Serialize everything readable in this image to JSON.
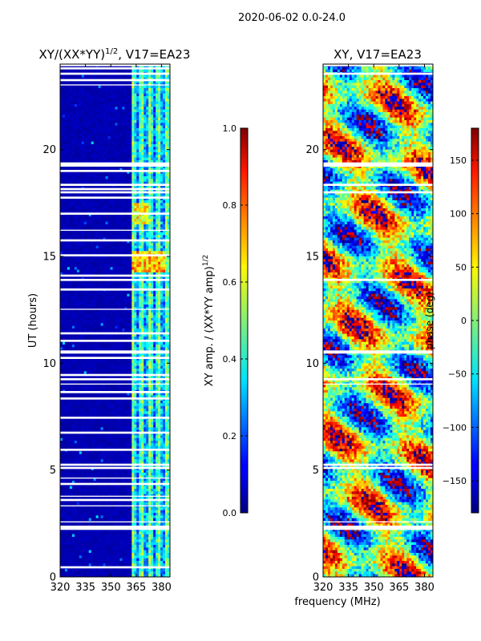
{
  "suptitle": "2020-06-02 0.0-24.0",
  "shared_xlabel": "frequency (MHz)",
  "chart_data": [
    {
      "type": "heatmap",
      "id": "amp",
      "title_main": "XY/(XX*YY)",
      "title_exp": "1/2",
      "title_rest": ", V17=EA23",
      "ylabel": "UT (hours)",
      "xlim": [
        320,
        385
      ],
      "ylim": [
        0,
        24
      ],
      "xticks": [
        320,
        335,
        350,
        365,
        380
      ],
      "yticks": [
        0,
        5,
        10,
        15,
        20
      ],
      "colorbar": {
        "label_main": "XY amp. / (XX*YY amp)",
        "label_exp": "1/2",
        "range": [
          0.0,
          1.0
        ],
        "ticks": [
          "0.0",
          "0.2",
          "0.4",
          "0.6",
          "0.8",
          "1.0"
        ],
        "tick_values": [
          0.0,
          0.2,
          0.4,
          0.6,
          0.8,
          1.0
        ],
        "colormap": "jet"
      },
      "flagged_bands_ut": [
        [
          0.4,
          0.5
        ],
        [
          2.2,
          2.4
        ],
        [
          2.55,
          2.6
        ],
        [
          3.3,
          3.35
        ],
        [
          3.55,
          3.65
        ],
        [
          3.75,
          3.8
        ],
        [
          4.3,
          4.4
        ],
        [
          4.6,
          4.65
        ],
        [
          5.05,
          5.15
        ],
        [
          5.2,
          5.3
        ],
        [
          5.9,
          6.0
        ],
        [
          6.7,
          6.8
        ],
        [
          7.4,
          7.5
        ],
        [
          8.3,
          8.4
        ],
        [
          8.6,
          8.7
        ],
        [
          9.0,
          9.05
        ],
        [
          9.2,
          9.3
        ],
        [
          9.4,
          9.5
        ],
        [
          10.2,
          10.3
        ],
        [
          10.45,
          10.6
        ],
        [
          11.0,
          11.1
        ],
        [
          11.35,
          11.45
        ],
        [
          12.5,
          12.55
        ],
        [
          13.4,
          13.5
        ],
        [
          13.85,
          13.95
        ],
        [
          14.05,
          14.15
        ],
        [
          15.0,
          15.1
        ],
        [
          15.7,
          15.8
        ],
        [
          16.2,
          16.25
        ],
        [
          16.95,
          17.05
        ],
        [
          17.7,
          17.8
        ],
        [
          17.95,
          18.05
        ],
        [
          18.1,
          18.2
        ],
        [
          18.3,
          18.4
        ],
        [
          18.95,
          19.05
        ],
        [
          19.2,
          19.4
        ],
        [
          23.0,
          23.05
        ],
        [
          23.2,
          23.3
        ],
        [
          23.5,
          23.6
        ],
        [
          23.75,
          23.85
        ],
        [
          23.9,
          24.0
        ]
      ]
    },
    {
      "type": "heatmap",
      "id": "phase",
      "title_main": "XY, V17=EA23",
      "ylabel": "",
      "xlim": [
        320,
        385
      ],
      "ylim": [
        0,
        24
      ],
      "xticks": [
        320,
        335,
        350,
        365,
        380
      ],
      "yticks": [
        0,
        5,
        10,
        15,
        20
      ],
      "colorbar": {
        "label_main": "phase (deg)",
        "range": [
          -180,
          180
        ],
        "ticks": [
          "−150",
          "−100",
          "−50",
          "0",
          "50",
          "100",
          "150"
        ],
        "tick_values": [
          -150,
          -100,
          -50,
          0,
          50,
          100,
          150
        ],
        "colormap": "jet"
      },
      "flagged_bands_ut": [
        [
          2.2,
          2.4
        ],
        [
          2.55,
          2.6
        ],
        [
          5.05,
          5.15
        ],
        [
          5.2,
          5.3
        ],
        [
          9.0,
          9.05
        ],
        [
          9.2,
          9.3
        ],
        [
          10.45,
          10.6
        ],
        [
          13.85,
          13.95
        ],
        [
          17.95,
          18.05
        ],
        [
          18.3,
          18.4
        ],
        [
          19.2,
          19.4
        ],
        [
          23.5,
          23.6
        ],
        [
          23.9,
          24.0
        ]
      ]
    }
  ]
}
